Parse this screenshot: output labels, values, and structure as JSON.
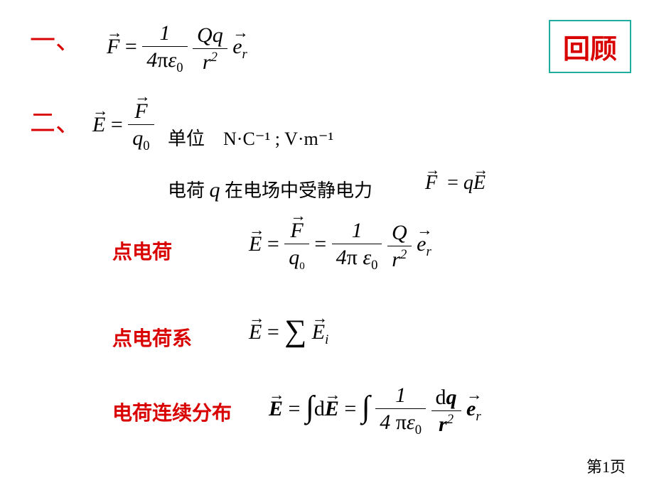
{
  "slide": {
    "review_label": "回顾",
    "section_one": "一、",
    "section_two": "二、",
    "units_label": "单位",
    "units_expr": "N·C⁻¹ ;  V·m⁻¹",
    "charge_force_prefix": "电荷 ",
    "charge_symbol": "q",
    "charge_force_suffix": " 在电场中受静电力",
    "label_point_charge": "点电荷",
    "label_point_system": "点电荷系",
    "label_continuous": "电荷连续分布",
    "page_number": "第1页"
  },
  "colors": {
    "accent_border": "#1fae9f",
    "accent_text": "#d90000",
    "text": "#000000",
    "background": "#ffffff"
  },
  "equations": {
    "coulomb": "F = (1 / 4πε₀)(Qq / r²) e_r",
    "field_def": "E = F / q₀",
    "force_on_charge": "F = qE",
    "point_charge_field": "E = F/q₀ = (1 / 4πε₀)(Q / r²) e_r",
    "system_field": "E = Σ E_i",
    "continuous_field": "E = ∫ dE = ∫ (1 / 4πε₀)(dq / r²) e_r"
  }
}
